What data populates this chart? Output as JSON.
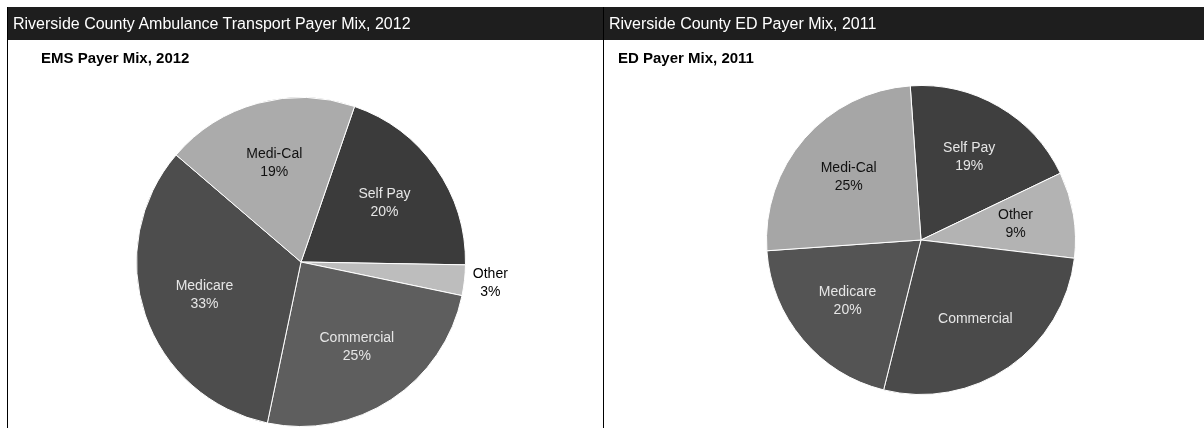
{
  "chart_data": [
    {
      "type": "pie",
      "title": "Riverside County Ambulance Transport Payer Mix, 2012",
      "subtitle": "EMS Payer Mix, 2012",
      "categories": [
        "Self Pay",
        "Other",
        "Commercial",
        "Medicare",
        "Medi-Cal"
      ],
      "values": [
        20,
        3,
        25,
        33,
        19
      ],
      "colors": [
        "#3b3b3b",
        "#bdbdbd",
        "#5e5e5e",
        "#4d4d4d",
        "#ababab"
      ],
      "value_labels": [
        "20%",
        "3%",
        "25%",
        "33%",
        "19%"
      ]
    },
    {
      "type": "pie",
      "title": "Riverside County ED Payer Mix, 2011",
      "subtitle": "ED Payer Mix, 2011",
      "categories": [
        "Self Pay",
        "Other",
        "Commercial",
        "Medicare",
        "Medi-Cal"
      ],
      "values": [
        19,
        9,
        27,
        20,
        25
      ],
      "colors": [
        "#3f3f3f",
        "#b3b3b3",
        "#4a4a4a",
        "#545454",
        "#a6a6a6"
      ],
      "value_labels": [
        "19%",
        "9%",
        null,
        "20%",
        "25%"
      ]
    }
  ]
}
